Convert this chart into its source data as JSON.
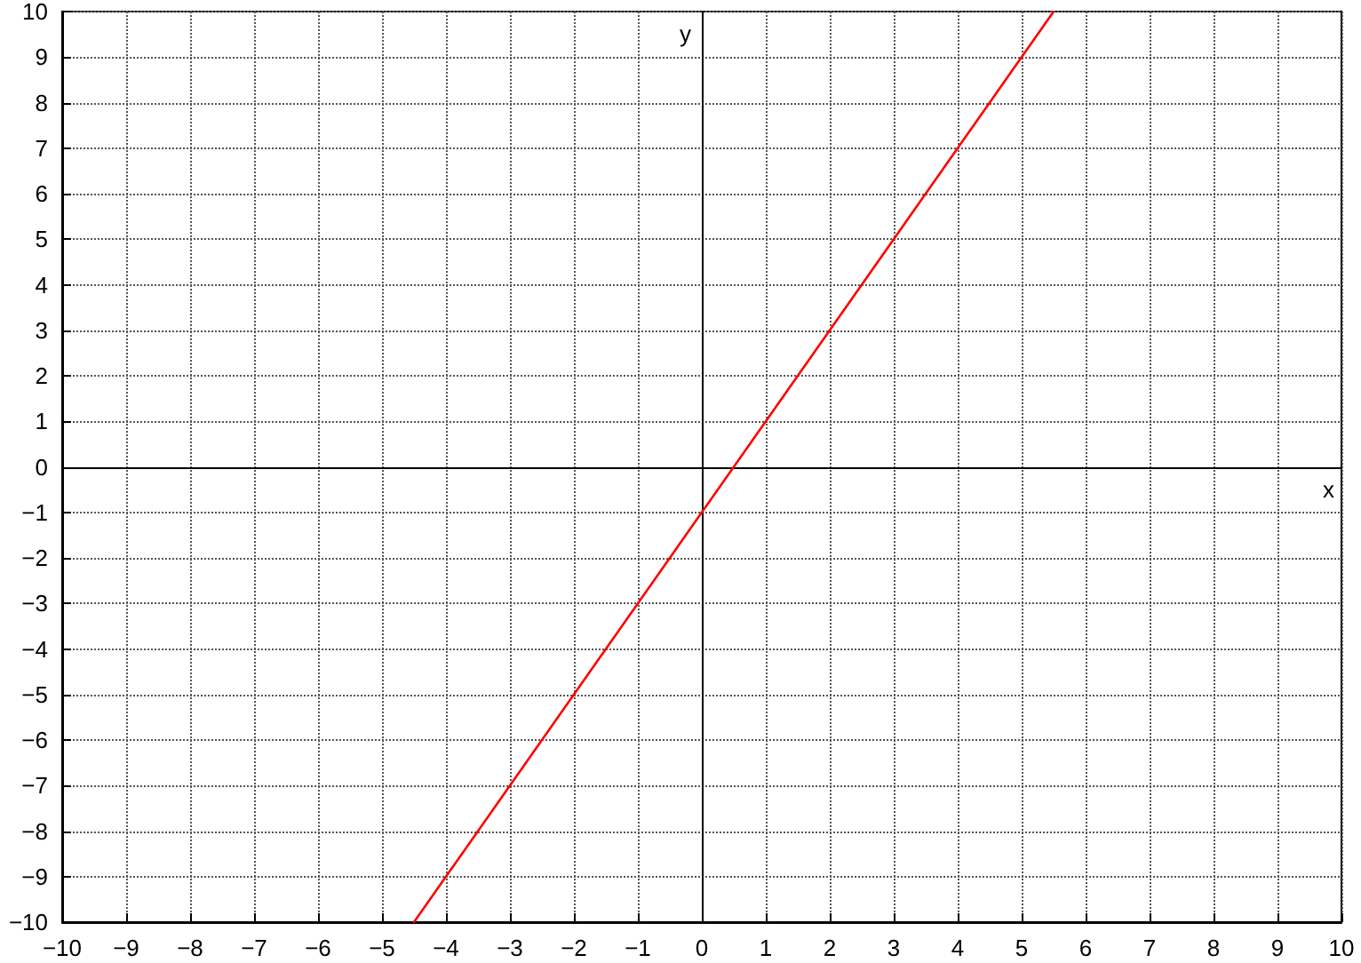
{
  "chart_data": {
    "type": "line",
    "xlabel": "x",
    "ylabel": "y",
    "x": [
      -4.5,
      5.5
    ],
    "series": [
      {
        "color": "#ff0000",
        "values": [
          -10,
          10
        ]
      }
    ],
    "xlim": [
      -10,
      10
    ],
    "ylim": [
      -10,
      10
    ],
    "xticks": [
      {
        "value": -10,
        "label": "−10"
      },
      {
        "value": -9,
        "label": "−9"
      },
      {
        "value": -8,
        "label": "−8"
      },
      {
        "value": -7,
        "label": "−7"
      },
      {
        "value": -6,
        "label": "−6"
      },
      {
        "value": -5,
        "label": "−5"
      },
      {
        "value": -4,
        "label": "−4"
      },
      {
        "value": -3,
        "label": "−3"
      },
      {
        "value": -2,
        "label": "−2"
      },
      {
        "value": -1,
        "label": "−1"
      },
      0,
      1,
      2,
      3,
      4,
      5,
      6,
      7,
      8,
      9,
      10
    ],
    "yticks": [
      {
        "value": -10,
        "label": "−10"
      },
      {
        "value": -9,
        "label": "−9"
      },
      {
        "value": -8,
        "label": "−8"
      },
      {
        "value": -7,
        "label": "−7"
      },
      {
        "value": -6,
        "label": "−6"
      },
      {
        "value": -5,
        "label": "−5"
      },
      {
        "value": -4,
        "label": "−4"
      },
      {
        "value": -3,
        "label": "−3"
      },
      {
        "value": -2,
        "label": "−2"
      },
      {
        "value": -1,
        "label": "−1"
      },
      0,
      1,
      2,
      3,
      4,
      5,
      6,
      7,
      8,
      9,
      10
    ],
    "grid": true,
    "marker": "none",
    "line_style": "solid"
  }
}
